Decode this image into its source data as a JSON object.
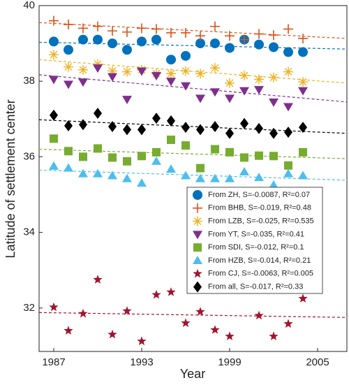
{
  "chart_data": {
    "type": "scatter",
    "x_label": "Year",
    "y_label": "Latitude of settlement center",
    "x": [
      1987,
      1988,
      1989,
      1990,
      1991,
      1992,
      1993,
      1994,
      1995,
      1996,
      1997,
      1998,
      1999,
      2000,
      2001,
      2002,
      2003,
      2004
    ],
    "xlim": [
      1986,
      2007
    ],
    "xticks": [
      1987,
      1993,
      1999,
      2005
    ],
    "ylim": [
      30.85,
      40
    ],
    "yticks": [
      32,
      34,
      36,
      38,
      40
    ],
    "series": [
      {
        "name": "From ZH, S=-0.0087, R²=0.07",
        "color": "#0072BD",
        "marker": "circle",
        "values": [
          39.05,
          38.83,
          39.1,
          39.1,
          39.0,
          38.83,
          39.05,
          39.1,
          38.57,
          38.67,
          39.0,
          39.0,
          38.88,
          39.1,
          38.97,
          38.9,
          38.77,
          38.77
        ],
        "trend": [
          39.03,
          38.85
        ]
      },
      {
        "name": "From BHB, S=-0.019, R²=0.48",
        "color": "#D95319",
        "marker": "plus",
        "values": [
          39.6,
          39.5,
          39.4,
          39.45,
          39.33,
          39.3,
          39.4,
          39.38,
          39.28,
          39.28,
          39.2,
          39.45,
          39.2,
          39.1,
          39.25,
          39.22,
          39.38,
          39.13
        ],
        "trend": [
          39.55,
          39.13
        ]
      },
      {
        "name": "From LZB, S=-0.025, R²=0.535",
        "color": "#EDB120",
        "marker": "asterisk",
        "values": [
          38.7,
          38.38,
          38.3,
          38.45,
          38.27,
          38.25,
          38.3,
          38.2,
          38.2,
          38.27,
          38.2,
          38.35,
          37.95,
          38.15,
          38.05,
          38.1,
          38.25,
          37.98
        ],
        "trend": [
          38.57,
          37.95
        ]
      },
      {
        "name": "From YT, S=-0.035, R²=0.41",
        "color": "#7E2F8E",
        "marker": "triangle-down",
        "values": [
          38.05,
          37.92,
          37.98,
          38.35,
          38.12,
          37.52,
          38.27,
          38.15,
          38.0,
          37.88,
          37.55,
          37.72,
          37.55,
          37.75,
          37.78,
          37.45,
          37.33,
          37.75
        ],
        "trend": [
          38.17,
          37.45
        ]
      },
      {
        "name": "From SDI, S=-0.012, R²=0.1",
        "color": "#77AC30",
        "marker": "square",
        "values": [
          36.48,
          36.15,
          36.0,
          36.22,
          35.98,
          35.88,
          36.02,
          36.12,
          36.45,
          36.3,
          35.7,
          36.2,
          36.12,
          35.98,
          36.03,
          36.02,
          35.77,
          36.12
        ],
        "trend": [
          36.2,
          35.95
        ]
      },
      {
        "name": "From HZB, S=-0.014, R²=0.21",
        "color": "#4DBEEE",
        "marker": "triangle-up",
        "values": [
          35.75,
          35.7,
          35.55,
          35.55,
          35.5,
          35.42,
          35.3,
          35.88,
          35.67,
          35.5,
          35.42,
          35.42,
          35.42,
          35.6,
          35.45,
          35.25,
          35.55,
          35.5
        ],
        "trend": [
          35.65,
          35.38
        ]
      },
      {
        "name": "From CJ, S=-0.0063, R²=0.005",
        "color": "#A2142F",
        "marker": "star",
        "values": [
          32.02,
          31.4,
          31.85,
          32.75,
          31.3,
          31.92,
          31.12,
          32.35,
          32.42,
          31.6,
          31.9,
          31.42,
          31.25,
          null,
          31.8,
          31.25,
          31.58,
          32.25
        ],
        "trend": [
          31.88,
          31.75
        ]
      },
      {
        "name": "From all, S=-0.017, R²=0.33",
        "color": "#000000",
        "marker": "diamond",
        "values": [
          37.1,
          36.82,
          36.85,
          37.15,
          36.8,
          36.72,
          36.72,
          37.02,
          36.95,
          36.78,
          36.72,
          36.8,
          36.62,
          36.88,
          36.75,
          36.62,
          36.65,
          36.78
        ],
        "trend": [
          36.98,
          36.62
        ]
      }
    ]
  }
}
